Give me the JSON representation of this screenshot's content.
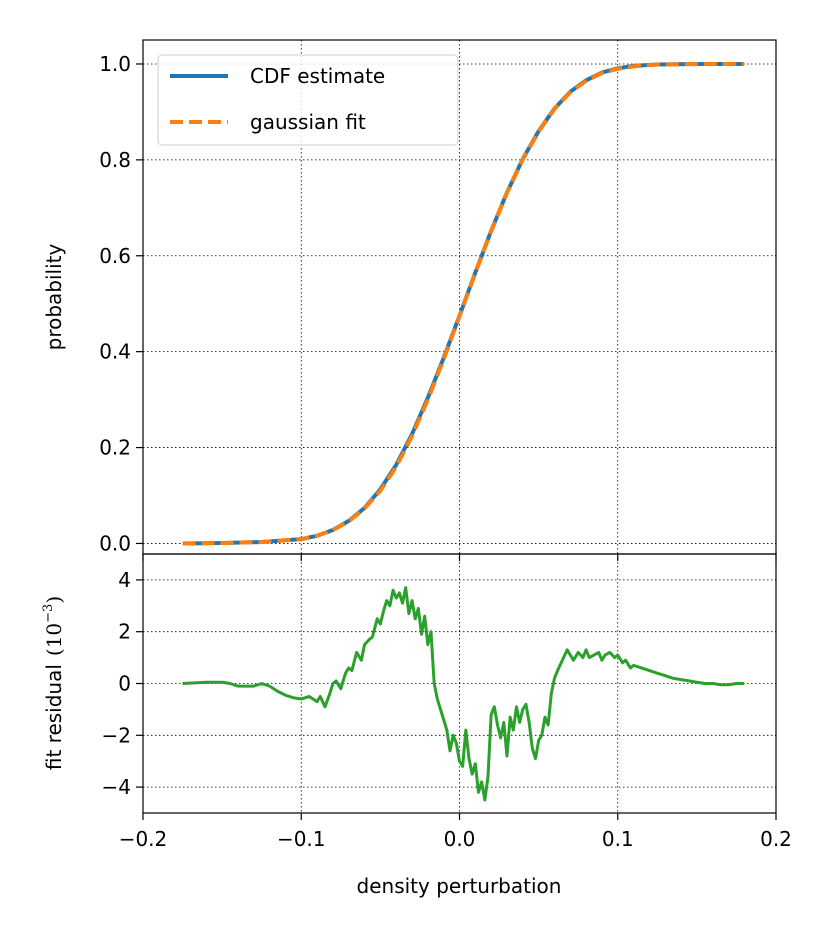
{
  "chart_data": [
    {
      "type": "line",
      "name": "cdf-panel",
      "xlim": [
        -0.2,
        0.2
      ],
      "ylim": [
        -0.022,
        1.05
      ],
      "x_ticks": [
        -0.2,
        -0.1,
        0.0,
        0.1,
        0.2
      ],
      "y_ticks": [
        0.0,
        0.2,
        0.4,
        0.6,
        0.8,
        1.0
      ],
      "y_tick_labels": [
        "0.0",
        "0.2",
        "0.4",
        "0.6",
        "0.8",
        "1.0"
      ],
      "ylabel": "probability",
      "grid": true,
      "legend_position": "top-left",
      "colors": {
        "cdf": "#1f77b4",
        "fit": "#ff7f0e"
      },
      "legend": [
        {
          "label": "CDF estimate",
          "style": "solid",
          "color": "#1f77b4"
        },
        {
          "label": "gaussian fit",
          "style": "dashed",
          "color": "#ff7f0e"
        }
      ],
      "series": [
        {
          "name": "CDF estimate",
          "x": [
            -0.175,
            -0.15,
            -0.125,
            -0.1,
            -0.09,
            -0.08,
            -0.07,
            -0.06,
            -0.05,
            -0.04,
            -0.03,
            -0.02,
            -0.01,
            0.0,
            0.01,
            0.02,
            0.03,
            0.04,
            0.05,
            0.06,
            0.07,
            0.08,
            0.09,
            0.1,
            0.11,
            0.125,
            0.15,
            0.18
          ],
          "values": [
            0.0,
            0.001,
            0.003,
            0.009,
            0.016,
            0.028,
            0.047,
            0.074,
            0.113,
            0.164,
            0.228,
            0.304,
            0.387,
            0.475,
            0.565,
            0.652,
            0.732,
            0.802,
            0.86,
            0.907,
            0.942,
            0.966,
            0.982,
            0.991,
            0.996,
            0.999,
            1.0,
            1.0
          ]
        },
        {
          "name": "gaussian fit",
          "x": [
            -0.175,
            -0.15,
            -0.125,
            -0.1,
            -0.09,
            -0.08,
            -0.07,
            -0.06,
            -0.05,
            -0.04,
            -0.03,
            -0.02,
            -0.01,
            0.0,
            0.01,
            0.02,
            0.03,
            0.04,
            0.05,
            0.06,
            0.07,
            0.08,
            0.09,
            0.1,
            0.11,
            0.125,
            0.15,
            0.18
          ],
          "values": [
            0.0,
            0.001,
            0.003,
            0.009,
            0.016,
            0.028,
            0.046,
            0.073,
            0.11,
            0.16,
            0.224,
            0.3,
            0.384,
            0.474,
            0.564,
            0.651,
            0.731,
            0.801,
            0.859,
            0.906,
            0.941,
            0.965,
            0.981,
            0.99,
            0.995,
            0.999,
            1.0,
            1.0
          ]
        }
      ]
    },
    {
      "type": "line",
      "name": "residual-panel",
      "xlim": [
        -0.2,
        0.2
      ],
      "ylim": [
        -5,
        5
      ],
      "x_ticks": [
        -0.2,
        -0.1,
        0.0,
        0.1,
        0.2
      ],
      "x_tick_labels": [
        "−0.2",
        "−0.1",
        "0.0",
        "0.1",
        "0.2"
      ],
      "y_ticks": [
        -4,
        -2,
        0,
        2,
        4
      ],
      "y_tick_labels": [
        "−4",
        "−2",
        "0",
        "2",
        "4"
      ],
      "xlabel": "density perturbation",
      "ylabel": "fit residual",
      "ylabel_math": "(10",
      "ylabel_exp": "−3",
      "ylabel_close": ")",
      "grid": true,
      "colors": {
        "residual": "#2ca02c"
      },
      "series": [
        {
          "name": "fit residual",
          "x": [
            -0.175,
            -0.16,
            -0.15,
            -0.145,
            -0.14,
            -0.13,
            -0.125,
            -0.12,
            -0.115,
            -0.11,
            -0.105,
            -0.1,
            -0.095,
            -0.09,
            -0.088,
            -0.085,
            -0.082,
            -0.08,
            -0.078,
            -0.075,
            -0.072,
            -0.07,
            -0.068,
            -0.065,
            -0.062,
            -0.06,
            -0.057,
            -0.055,
            -0.052,
            -0.05,
            -0.048,
            -0.046,
            -0.044,
            -0.042,
            -0.04,
            -0.038,
            -0.036,
            -0.034,
            -0.032,
            -0.03,
            -0.028,
            -0.026,
            -0.024,
            -0.022,
            -0.02,
            -0.018,
            -0.016,
            -0.014,
            -0.012,
            -0.01,
            -0.008,
            -0.006,
            -0.004,
            -0.002,
            0.0,
            0.002,
            0.004,
            0.006,
            0.008,
            0.01,
            0.012,
            0.014,
            0.016,
            0.018,
            0.02,
            0.022,
            0.024,
            0.026,
            0.028,
            0.03,
            0.032,
            0.034,
            0.036,
            0.038,
            0.04,
            0.042,
            0.044,
            0.046,
            0.048,
            0.05,
            0.052,
            0.054,
            0.056,
            0.058,
            0.06,
            0.062,
            0.065,
            0.068,
            0.07,
            0.072,
            0.075,
            0.078,
            0.08,
            0.082,
            0.085,
            0.088,
            0.09,
            0.092,
            0.095,
            0.098,
            0.1,
            0.103,
            0.105,
            0.108,
            0.11,
            0.115,
            0.12,
            0.125,
            0.13,
            0.135,
            0.14,
            0.145,
            0.15,
            0.155,
            0.16,
            0.165,
            0.17,
            0.175,
            0.18
          ],
          "values": [
            0.0,
            0.05,
            0.05,
            0.0,
            -0.1,
            -0.1,
            0.0,
            -0.1,
            -0.3,
            -0.45,
            -0.55,
            -0.6,
            -0.5,
            -0.7,
            -0.5,
            -0.9,
            -0.4,
            0.0,
            0.1,
            -0.2,
            0.4,
            0.6,
            0.5,
            1.2,
            0.9,
            1.5,
            1.7,
            1.8,
            2.5,
            2.3,
            2.8,
            3.2,
            3.0,
            3.6,
            3.3,
            3.5,
            3.1,
            3.7,
            2.7,
            3.2,
            2.5,
            2.9,
            1.9,
            2.6,
            1.5,
            2.0,
            0.0,
            -0.6,
            -1.0,
            -1.4,
            -1.8,
            -2.6,
            -2.0,
            -2.3,
            -3.0,
            -3.2,
            -1.8,
            -2.9,
            -3.5,
            -3.1,
            -4.2,
            -3.8,
            -4.5,
            -3.6,
            -1.2,
            -0.9,
            -1.6,
            -2.1,
            -1.5,
            -2.8,
            -1.3,
            -1.8,
            -0.9,
            -1.5,
            -1.0,
            -0.8,
            -1.5,
            -2.5,
            -2.9,
            -2.2,
            -2.0,
            -1.3,
            -1.6,
            -0.4,
            0.2,
            0.5,
            0.9,
            1.3,
            1.1,
            0.9,
            1.2,
            1.0,
            1.3,
            1.0,
            1.1,
            1.2,
            0.9,
            1.1,
            1.2,
            1.0,
            1.1,
            0.8,
            0.9,
            0.6,
            0.7,
            0.6,
            0.5,
            0.4,
            0.3,
            0.2,
            0.15,
            0.1,
            0.05,
            0.0,
            0.0,
            -0.05,
            -0.05,
            0.0,
            0.0
          ]
        }
      ]
    }
  ]
}
